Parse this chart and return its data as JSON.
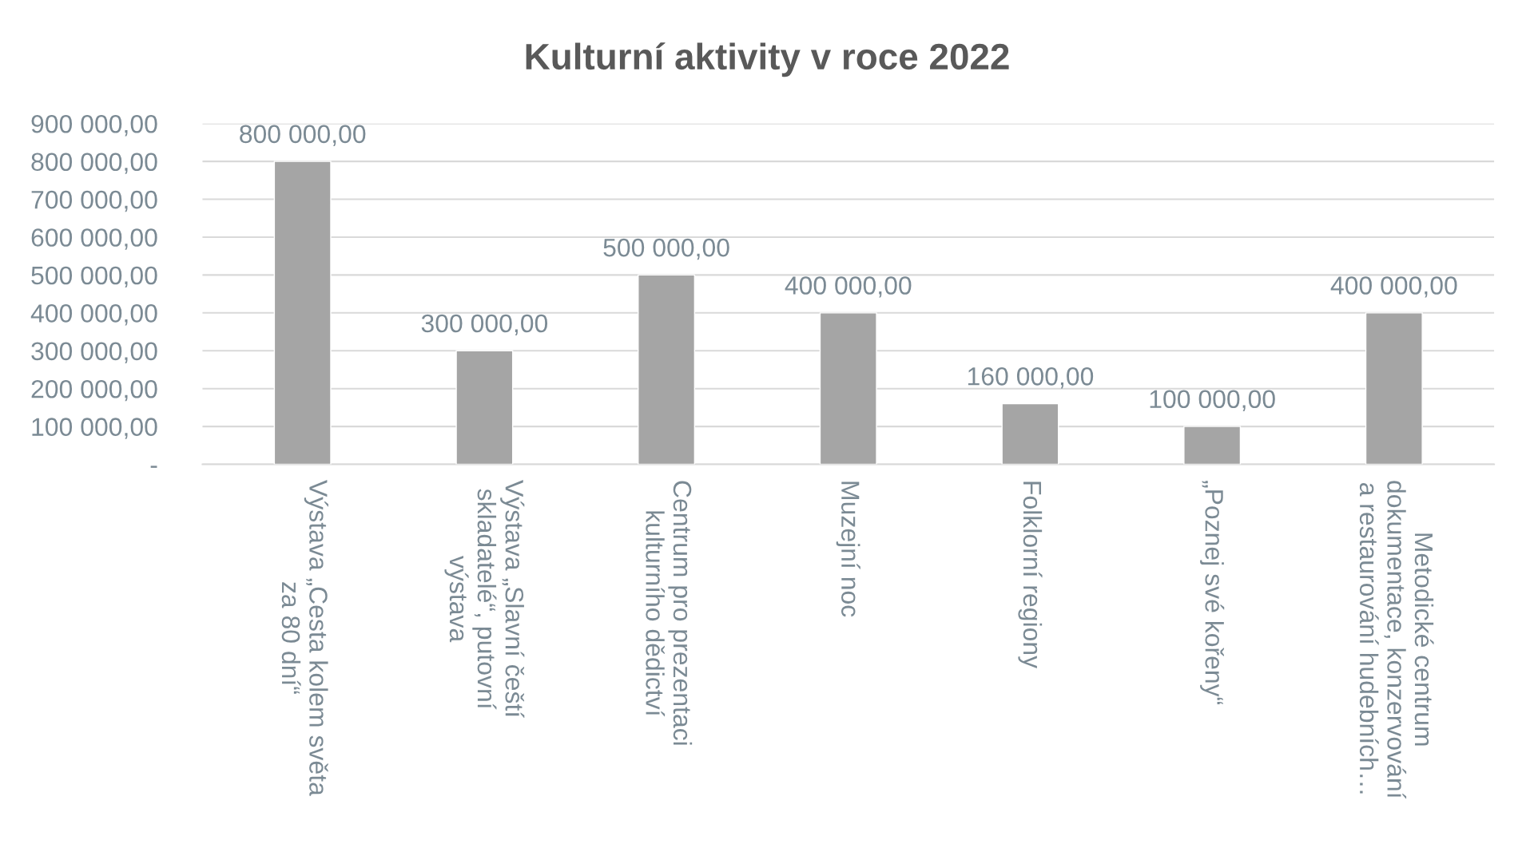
{
  "chart_data": {
    "type": "bar",
    "title": "Kulturní aktivity v roce 2022",
    "categories": [
      "Výstava „Cesta kolem světa za 80 dní“",
      "Výstava „Slavní čeští skladatelé“, putovní výstava",
      "Centrum pro prezentaci kulturního dědictví",
      "Muzejní noc",
      "Folklorní regiony",
      "„Poznej své kořeny“",
      "Metodické centrum dokumentace, konzervování a restaurování hudebních…"
    ],
    "values": [
      800000,
      300000,
      500000,
      400000,
      160000,
      100000,
      400000
    ],
    "value_labels": [
      "800 000,00",
      "300 000,00",
      "500 000,00",
      "400 000,00",
      "160 000,00",
      "100 000,00",
      "400 000,00"
    ],
    "color": "#a5a5a5",
    "ylim": [
      0,
      900000
    ],
    "yticks": [
      {
        "value": 0,
        "label": "-"
      },
      {
        "value": 100000,
        "label": "100 000,00"
      },
      {
        "value": 200000,
        "label": "200 000,00"
      },
      {
        "value": 300000,
        "label": "300 000,00"
      },
      {
        "value": 400000,
        "label": "400 000,00"
      },
      {
        "value": 500000,
        "label": "500 000,00"
      },
      {
        "value": 600000,
        "label": "600 000,00"
      },
      {
        "value": 700000,
        "label": "700 000,00"
      },
      {
        "value": 800000,
        "label": "800 000,00"
      },
      {
        "value": 900000,
        "label": "900 000,00"
      }
    ],
    "grid": "y",
    "legend": false
  }
}
